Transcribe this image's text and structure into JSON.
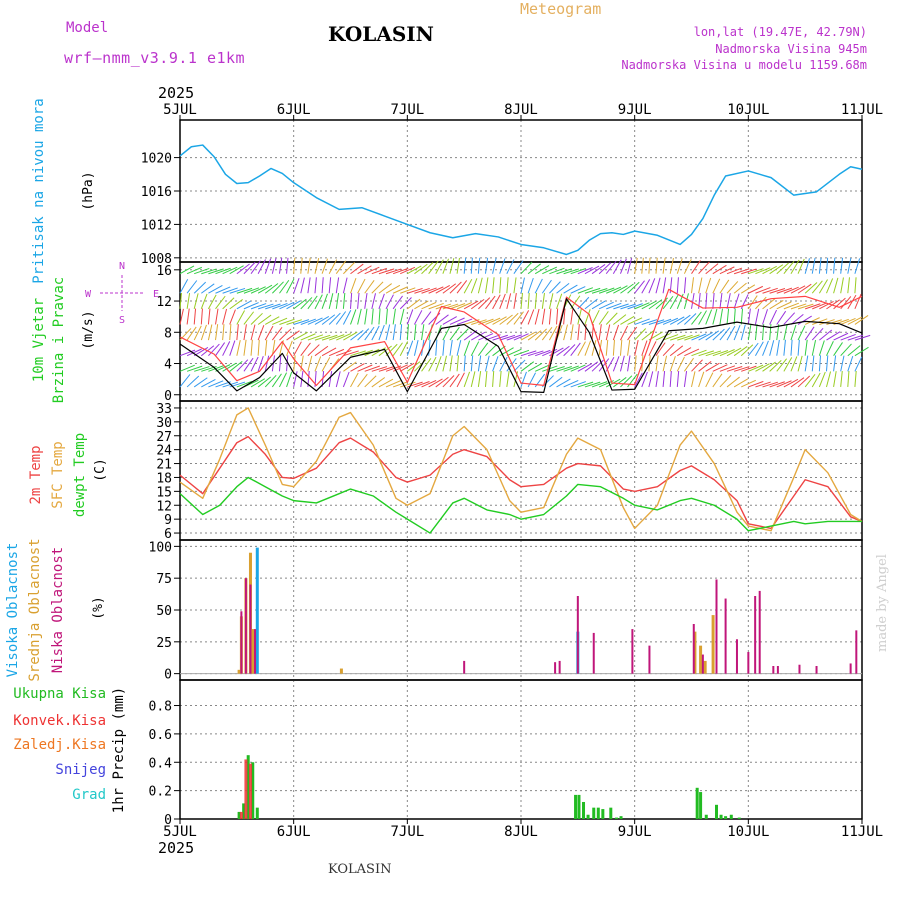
{
  "header": {
    "model_label": "Model",
    "model_name": "wrf—nmm_v3.9.1 e1km",
    "title": "KOLASIN",
    "meteogram": "Meteogram",
    "lonlat": "lon,lat (19.47E, 42.79N)",
    "altitude": "Nadmorska Visina 945m",
    "model_altitude": "Nadmorska Visina u modelu 1159.68m",
    "year_top": "2025",
    "year_bottom": "2025",
    "footer_station": "KOLASIN",
    "watermark": "made by Angel"
  },
  "colors": {
    "pressure": "#1ba6e6",
    "t2m": "#ee4444",
    "sfc": "#e4a840",
    "dewpt": "#22cc22",
    "high_cloud": "#1ba6e6",
    "mid_cloud": "#d9a030",
    "low_cloud": "#c0167a",
    "total_precip": "#22bb22",
    "conv_precip": "#ee3333",
    "frozen_precip": "#ee7722",
    "snow": "#4444dd",
    "hail": "#22c8c8",
    "axis": "#000000",
    "grid": "#888888",
    "wind_gust_line": "#ff4444",
    "wind_speed_line": "#000000",
    "purple_label": "#bb33cc"
  },
  "chart_data": [
    {
      "type": "line",
      "panel": "pressure",
      "ylabel": [
        "Pritisak na nivou mora",
        "(hPa)"
      ],
      "x_ticks": [
        "5JUL",
        "6JUL",
        "7JUL",
        "8JUL",
        "9JUL",
        "10JUL",
        "11JUL"
      ],
      "ylim": [
        1007.5,
        1024.5
      ],
      "y_ticks": [
        1008,
        1012,
        1016,
        1020
      ],
      "grid": true,
      "x": [
        0,
        0.1,
        0.2,
        0.3,
        0.4,
        0.5,
        0.6,
        0.7,
        0.8,
        0.9,
        1.0,
        1.2,
        1.4,
        1.6,
        1.8,
        2.0,
        2.2,
        2.4,
        2.6,
        2.8,
        3.0,
        3.2,
        3.4,
        3.5,
        3.6,
        3.7,
        3.8,
        3.9,
        4.0,
        4.2,
        4.4,
        4.5,
        4.6,
        4.7,
        4.8,
        5.0,
        5.2,
        5.4,
        5.6,
        5.8,
        5.9,
        6.0
      ],
      "series": [
        {
          "values": [
            1020.2,
            1021.3,
            1021.5,
            1020.1,
            1018.0,
            1016.9,
            1017.0,
            1017.8,
            1018.7,
            1018.1,
            1017.0,
            1015.2,
            1013.8,
            1014.0,
            1013.0,
            1012.0,
            1011.0,
            1010.4,
            1010.9,
            1010.5,
            1009.6,
            1009.2,
            1008.4,
            1008.9,
            1010.1,
            1010.9,
            1011.0,
            1010.8,
            1011.2,
            1010.7,
            1009.6,
            1010.8,
            1012.7,
            1015.5,
            1017.8,
            1018.4,
            1017.6,
            1015.5,
            1015.9,
            1018.0,
            1018.9,
            1018.6
          ]
        }
      ]
    },
    {
      "type": "line",
      "panel": "wind",
      "ylabel": [
        "10m Vjetar",
        "Brzina i Pravac",
        "(m/s)"
      ],
      "compass": [
        "N",
        "E",
        "S",
        "W"
      ],
      "ylim": [
        -0.8,
        17
      ],
      "y_ticks": [
        0,
        4,
        8,
        12,
        16
      ],
      "x_ticks": [
        "5JUL",
        "6JUL",
        "7JUL",
        "8JUL",
        "9JUL",
        "10JUL",
        "11JUL"
      ],
      "grid": true,
      "series": [
        {
          "values_x": [
            0,
            0.3,
            0.5,
            0.7,
            0.9,
            1.0,
            1.2,
            1.5,
            1.8,
            2.0,
            2.3,
            2.5,
            2.8,
            3.0,
            3.2,
            3.4,
            3.6,
            3.8,
            4.0,
            4.3,
            4.6,
            4.9,
            5.2,
            5.5,
            5.8,
            6.0
          ],
          "values": [
            7.4,
            5.2,
            1.8,
            3.0,
            6.8,
            4.6,
            1.2,
            6.0,
            6.8,
            1.6,
            11.3,
            10.6,
            7.7,
            1.5,
            1.2,
            12.5,
            10.3,
            1.5,
            1.3,
            13.5,
            11.1,
            11.2,
            12.3,
            12.6,
            11.2,
            12.6
          ]
        },
        {
          "values_x": [
            0,
            0.3,
            0.5,
            0.7,
            0.9,
            1.0,
            1.2,
            1.5,
            1.8,
            2.0,
            2.3,
            2.5,
            2.8,
            3.0,
            3.2,
            3.4,
            3.6,
            3.8,
            4.0,
            4.3,
            4.6,
            4.9,
            5.2,
            5.5,
            5.8,
            6.0
          ],
          "values": [
            6.5,
            3.5,
            0.5,
            2.2,
            5.3,
            2.8,
            0.5,
            4.8,
            5.8,
            0.4,
            8.5,
            9.0,
            6.2,
            0.4,
            0.3,
            12.3,
            8.0,
            0.6,
            0.7,
            8.2,
            8.5,
            9.3,
            8.6,
            9.4,
            9.1,
            7.9
          ]
        }
      ]
    },
    {
      "type": "line",
      "panel": "temperature",
      "ylabel": [
        "2m Temp",
        "SFC Temp",
        "dewpt Temp",
        "(C)"
      ],
      "ylim": [
        4.5,
        34.5
      ],
      "y_ticks": [
        6,
        9,
        12,
        15,
        18,
        21,
        24,
        27,
        30,
        33
      ],
      "x_ticks": [
        "5JUL",
        "6JUL",
        "7JUL",
        "8JUL",
        "9JUL",
        "10JUL",
        "11JUL"
      ],
      "grid": true,
      "x": [
        0,
        0.2,
        0.35,
        0.5,
        0.6,
        0.75,
        0.9,
        1.0,
        1.2,
        1.4,
        1.5,
        1.7,
        1.9,
        2.0,
        2.2,
        2.4,
        2.5,
        2.7,
        2.9,
        3.0,
        3.2,
        3.4,
        3.5,
        3.7,
        3.9,
        4.0,
        4.2,
        4.4,
        4.5,
        4.7,
        4.9,
        5.0,
        5.2,
        5.4,
        5.5,
        5.7,
        5.9,
        6.0
      ],
      "series": [
        {
          "name": "2m Temp",
          "values": [
            18.5,
            14.5,
            20.0,
            25.5,
            26.8,
            23.0,
            18.0,
            17.8,
            20.0,
            25.5,
            26.5,
            23.5,
            18.0,
            17.0,
            18.5,
            23.0,
            24.0,
            22.5,
            17.5,
            16.0,
            16.5,
            20.0,
            21.0,
            20.5,
            15.5,
            15.0,
            16.0,
            19.5,
            20.5,
            17.5,
            13.0,
            8.0,
            7.0,
            14.0,
            17.5,
            16.0,
            9.5,
            8.5
          ]
        },
        {
          "name": "SFC Temp",
          "values": [
            17.0,
            13.5,
            22.0,
            31.5,
            33.0,
            25.0,
            16.5,
            16.0,
            21.5,
            31.0,
            32.0,
            25.0,
            13.5,
            12.0,
            14.5,
            27.0,
            29.0,
            24.0,
            13.0,
            10.5,
            11.5,
            23.0,
            26.5,
            24.0,
            11.5,
            7.0,
            12.0,
            25.0,
            28.0,
            21.0,
            10.5,
            7.5,
            6.5,
            18.0,
            24.0,
            19.0,
            10.0,
            8.5
          ]
        },
        {
          "name": "dewpt Temp",
          "values": [
            14.5,
            10.0,
            12.0,
            16.0,
            18.0,
            16.0,
            14.0,
            13.0,
            12.5,
            14.5,
            15.5,
            14.0,
            10.5,
            9.0,
            6.0,
            12.5,
            13.5,
            11.0,
            10.0,
            9.0,
            10.0,
            14.0,
            16.5,
            16.0,
            13.5,
            12.0,
            11.0,
            13.0,
            13.5,
            12.0,
            9.0,
            6.5,
            7.5,
            8.5,
            8.0,
            8.5,
            8.5,
            8.5
          ]
        }
      ]
    },
    {
      "type": "bar",
      "panel": "clouds",
      "ylabel": [
        "Visoka Oblacnost",
        "Srednja Oblacnost",
        "Niska Oblacnost",
        "(%)"
      ],
      "ylim": [
        -5,
        105
      ],
      "y_ticks": [
        0,
        25,
        50,
        75,
        100
      ],
      "x_ticks": [
        "5JUL",
        "6JUL",
        "7JUL",
        "8JUL",
        "9JUL",
        "10JUL",
        "11JUL"
      ],
      "grid": true,
      "series": [
        {
          "name": "Visoka Oblacnost",
          "x": [
            0.62,
            0.68,
            3.5
          ],
          "values": [
            50,
            99,
            33
          ]
        },
        {
          "name": "Srednja Oblacnost",
          "x": [
            0.52,
            0.54,
            0.58,
            0.62,
            0.64,
            1.42,
            4.53,
            4.58,
            4.62,
            4.69
          ],
          "values": [
            3,
            45,
            75,
            95,
            35,
            4,
            33,
            22,
            10,
            46
          ]
        },
        {
          "name": "Niska Oblacnost",
          "x": [
            0.54,
            0.58,
            0.62,
            0.66,
            2.5,
            3.3,
            3.34,
            3.5,
            3.64,
            3.98,
            4.13,
            4.52,
            4.6,
            4.72,
            4.8,
            4.9,
            5.0,
            5.06,
            5.1,
            5.22,
            5.26,
            5.45,
            5.6,
            5.9,
            5.95
          ],
          "values": [
            49,
            75,
            70,
            35,
            10,
            9,
            10,
            61,
            32,
            35,
            22,
            39,
            15,
            74,
            59,
            27,
            17,
            61,
            65,
            6,
            6,
            7,
            6,
            8,
            34
          ]
        }
      ]
    },
    {
      "type": "bar",
      "panel": "precip",
      "ylabel": [
        "1hr Precip (mm)"
      ],
      "legend": [
        "Ukupna Kisa",
        "Konvek.Kisa",
        "Zaledj.Kisa",
        "Snijeg",
        "Grad"
      ],
      "ylim": [
        0,
        0.98
      ],
      "y_ticks": [
        0,
        0.2,
        0.4,
        0.6,
        0.8
      ],
      "x_ticks": [
        "5JUL",
        "6JUL",
        "7JUL",
        "8JUL",
        "9JUL",
        "10JUL",
        "11JUL"
      ],
      "grid": true,
      "series": [
        {
          "name": "Ukupna Kisa",
          "x": [
            0.52,
            0.56,
            0.6,
            0.64,
            0.68,
            3.48,
            3.51,
            3.55,
            3.59,
            3.64,
            3.68,
            3.72,
            3.79,
            3.84,
            3.88,
            4.55,
            4.58,
            4.63,
            4.72,
            4.76,
            4.8,
            4.85,
            4.92
          ],
          "values": [
            0.05,
            0.11,
            0.45,
            0.4,
            0.08,
            0.17,
            0.17,
            0.12,
            0.03,
            0.08,
            0.08,
            0.07,
            0.08,
            0.01,
            0.02,
            0.22,
            0.19,
            0.03,
            0.1,
            0.03,
            0.02,
            0.03,
            0.01
          ]
        },
        {
          "name": "Konvek.Kisa",
          "x": [
            0.54,
            0.58,
            0.62
          ],
          "values": [
            0.05,
            0.42,
            0.39
          ]
        }
      ]
    }
  ]
}
